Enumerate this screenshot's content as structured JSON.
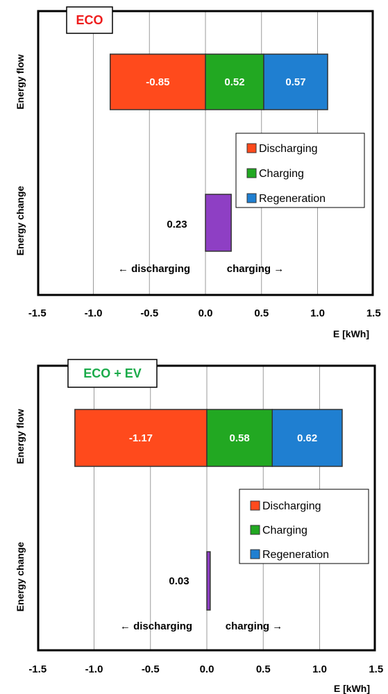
{
  "chart_data": [
    {
      "type": "bar",
      "title": "ECO",
      "title_color": "#ee1c1c",
      "xlabel": "E [kWh]",
      "xlim": [
        -1.5,
        1.5
      ],
      "xticks": [
        "-1.5",
        "-1.0",
        "-0.5",
        "0.0",
        "0.5",
        "1.0",
        "1.5"
      ],
      "grid": "vertical",
      "categories": [
        "Energy flow",
        "Energy change"
      ],
      "energy_flow": [
        {
          "name": "Discharging",
          "value": -0.85,
          "label": "-0.85",
          "color": "#ff4a1c"
        },
        {
          "name": "Charging",
          "value": 0.52,
          "label": "0.52",
          "color": "#22a822"
        },
        {
          "name": "Regeneration",
          "value": 0.57,
          "label": "0.57",
          "color": "#1f7fd1"
        }
      ],
      "energy_change": {
        "value": 0.23,
        "label": "0.23",
        "color": "#8e3fc4"
      },
      "annotations": {
        "left": "← discharging",
        "right": "charging →"
      },
      "legend": [
        "Discharging",
        "Charging",
        "Regeneration"
      ]
    },
    {
      "type": "bar",
      "title": "ECO + EV",
      "title_color": "#1aab4a",
      "xlabel": "E [kWh]",
      "xlim": [
        -1.5,
        1.5
      ],
      "xticks": [
        "-1.5",
        "-1.0",
        "-0.5",
        "0.0",
        "0.5",
        "1.0",
        "1.5"
      ],
      "grid": "vertical",
      "categories": [
        "Energy flow",
        "Energy change"
      ],
      "energy_flow": [
        {
          "name": "Discharging",
          "value": -1.17,
          "label": "-1.17",
          "color": "#ff4a1c"
        },
        {
          "name": "Charging",
          "value": 0.58,
          "label": "0.58",
          "color": "#22a822"
        },
        {
          "name": "Regeneration",
          "value": 0.62,
          "label": "0.62",
          "color": "#1f7fd1"
        }
      ],
      "energy_change": {
        "value": 0.03,
        "label": "0.03",
        "color": "#8e3fc4"
      },
      "annotations": {
        "left": "← discharging",
        "right": "charging →"
      },
      "legend": [
        "Discharging",
        "Charging",
        "Regeneration"
      ]
    }
  ]
}
